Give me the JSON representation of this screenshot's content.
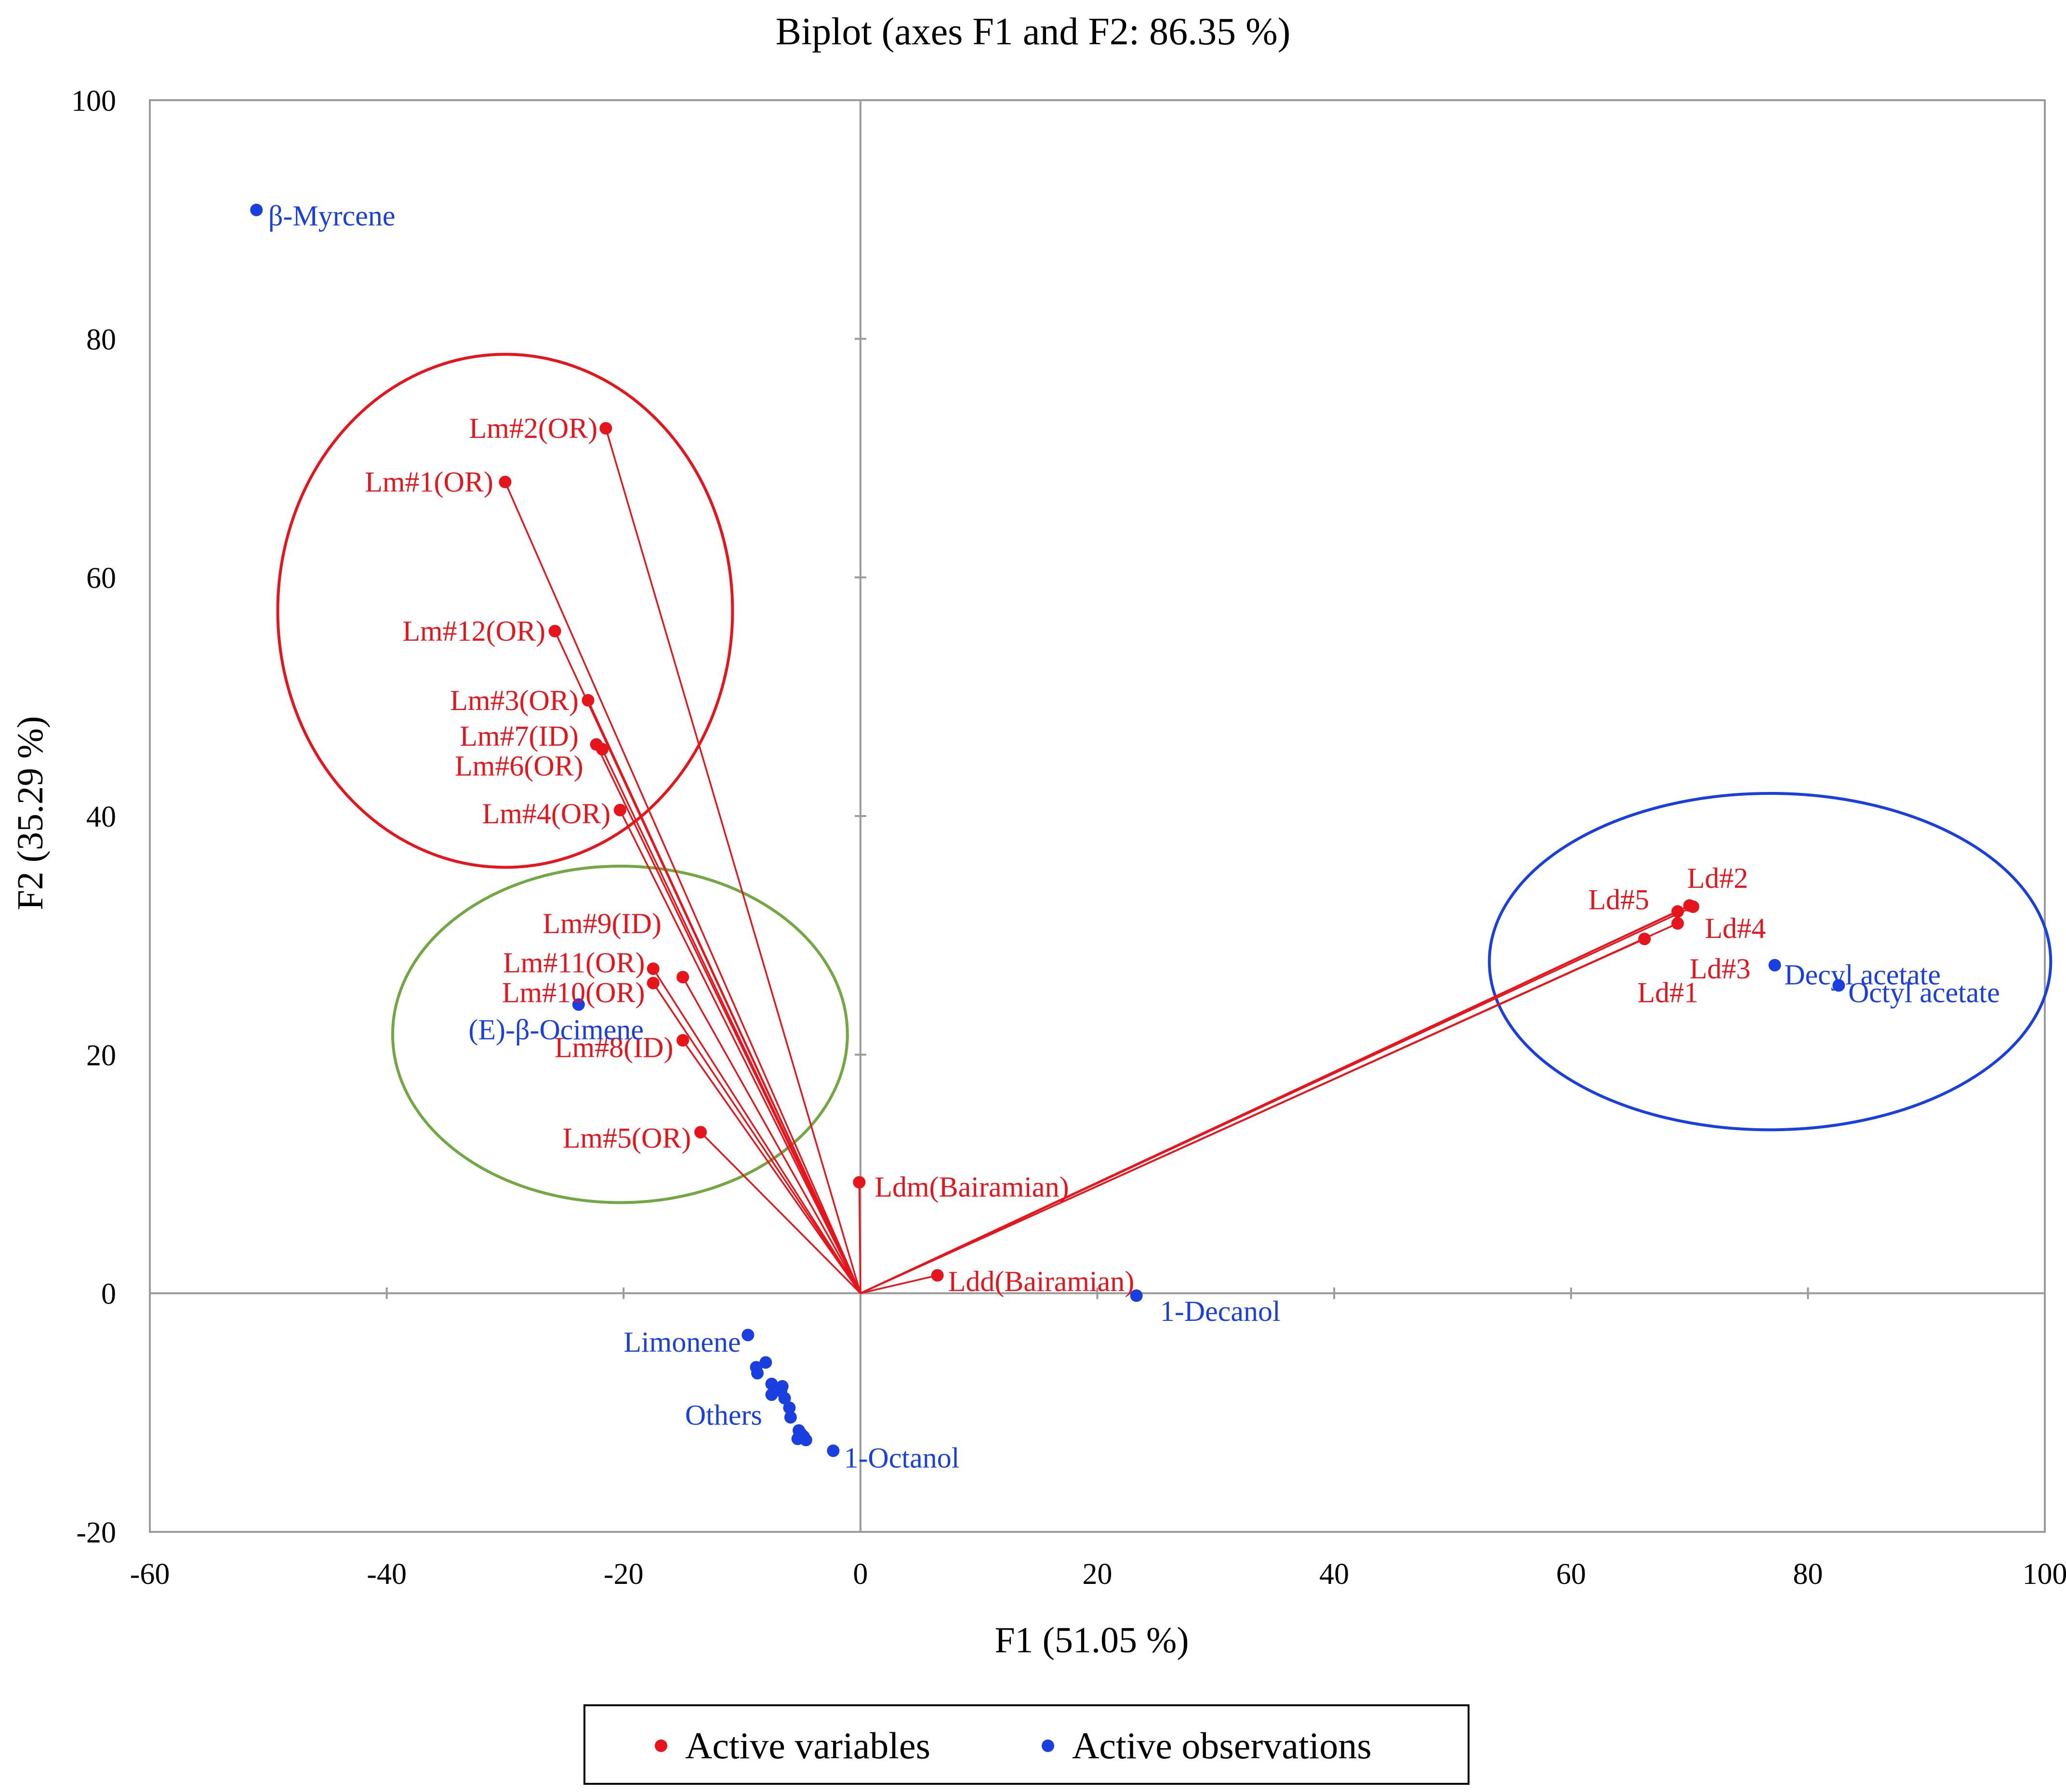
{
  "chart_data": {
    "type": "scatter",
    "title": "Biplot (axes F1 and F2: 86.35 %)",
    "xlabel": "F1 (51.05 %)",
    "ylabel": "F2 (35.29 %)",
    "xlim": [
      -60,
      100
    ],
    "ylim": [
      -20,
      100
    ],
    "xticks": [
      -60,
      -40,
      -20,
      0,
      20,
      40,
      60,
      80,
      100
    ],
    "yticks": [
      -20,
      0,
      20,
      40,
      60,
      80,
      100
    ],
    "grid": false,
    "legend": {
      "placement": "bottom-center",
      "items": [
        {
          "label": "Active variables",
          "color": "#e8141c"
        },
        {
          "label": "Active observations",
          "color": "#1a3fe0"
        }
      ]
    },
    "series": [
      {
        "name": "Active variables",
        "color": "#e8141c",
        "vectors_from_origin": true,
        "points": [
          {
            "label": "Lm#2(OR)",
            "x": -21.5,
            "y": 72.5,
            "anchor": "end",
            "dx": -0.7,
            "dy": 0
          },
          {
            "label": "Lm#1(OR)",
            "x": -30.0,
            "y": 68.0,
            "anchor": "end",
            "dx": -1.0,
            "dy": 0
          },
          {
            "label": "Lm#12(OR)",
            "x": -25.8,
            "y": 55.5,
            "anchor": "end",
            "dx": -0.8,
            "dy": 0
          },
          {
            "label": "Lm#3(OR)",
            "x": -23.0,
            "y": 49.7,
            "anchor": "end",
            "dx": -0.8,
            "dy": 0
          },
          {
            "label": "Lm#7(ID)",
            "x": -22.3,
            "y": 46.0,
            "anchor": "end",
            "dx": -1.5,
            "dy": 0.7
          },
          {
            "label": "Lm#6(OR)",
            "x": -21.8,
            "y": 45.6,
            "anchor": "end",
            "dx": -1.6,
            "dy": -1.4
          },
          {
            "label": "Lm#4(OR)",
            "x": -20.3,
            "y": 40.5,
            "anchor": "end",
            "dx": -0.8,
            "dy": -0.3
          },
          {
            "label": "Lm#9(ID)",
            "x": -15.0,
            "y": 26.5,
            "anchor": "end",
            "dx": -1.8,
            "dy": 4.5
          },
          {
            "label": "Lm#11(OR)",
            "x": -17.5,
            "y": 27.2,
            "anchor": "end",
            "dx": -0.7,
            "dy": 0.5
          },
          {
            "label": "Lm#10(OR)",
            "x": -17.5,
            "y": 26.0,
            "anchor": "end",
            "dx": -0.7,
            "dy": -0.8
          },
          {
            "label": "Lm#8(ID)",
            "x": -15.0,
            "y": 21.2,
            "anchor": "end",
            "dx": -0.8,
            "dy": -0.6
          },
          {
            "label": "Lm#5(OR)",
            "x": -13.5,
            "y": 13.5,
            "anchor": "end",
            "dx": -0.8,
            "dy": -0.5
          },
          {
            "label": "Ldm(Bairamian)",
            "x": -0.1,
            "y": 9.3,
            "anchor": "start",
            "dx": 1.3,
            "dy": -0.4
          },
          {
            "label": "Ldd(Bairamian)",
            "x": 6.5,
            "y": 1.5,
            "anchor": "start",
            "dx": 0.9,
            "dy": -0.5
          },
          {
            "label": "Ld#5",
            "x": 69.0,
            "y": 32.0,
            "anchor": "end",
            "dx": -2.4,
            "dy": 1.0
          },
          {
            "label": "Ld#2",
            "x": 70.0,
            "y": 32.5,
            "anchor": "start",
            "dx": -0.2,
            "dy": 2.3
          },
          {
            "label": "Ld#4",
            "x": 70.3,
            "y": 32.4,
            "anchor": "start",
            "dx": 1.0,
            "dy": -1.8
          },
          {
            "label": "Ld#3",
            "x": 69.0,
            "y": 31.0,
            "anchor": "start",
            "dx": 1.0,
            "dy": -3.8
          },
          {
            "label": "Ld#1",
            "x": 66.2,
            "y": 29.7,
            "anchor": "start",
            "dx": -0.6,
            "dy": -4.5
          }
        ]
      },
      {
        "name": "Active observations",
        "color": "#1a3fe0",
        "vectors_from_origin": false,
        "points": [
          {
            "label": "β-Myrcene",
            "x": -51.0,
            "y": 90.8,
            "anchor": "start",
            "dx": 1.0,
            "dy": -0.5
          },
          {
            "label": "(E)-β-Ocimene",
            "x": -23.8,
            "y": 24.2,
            "anchor": "end",
            "dx": 5.5,
            "dy": -2.1
          },
          {
            "label": "Limonene",
            "x": -9.5,
            "y": -3.5,
            "anchor": "end",
            "dx": -0.6,
            "dy": -0.6
          },
          {
            "label": "Others",
            "x": -7.5,
            "y": -8.5,
            "anchor": "end",
            "dx": -0.8,
            "dy": -1.7
          },
          {
            "label": "1-Octanol",
            "x": -2.3,
            "y": -13.2,
            "anchor": "start",
            "dx": 0.9,
            "dy": -0.6
          },
          {
            "label": "1-Decanol",
            "x": 23.3,
            "y": -0.2,
            "anchor": "start",
            "dx": 2.0,
            "dy": -1.3
          },
          {
            "label": "Decyl acetate",
            "x": 77.2,
            "y": 27.5,
            "anchor": "start",
            "dx": 0.8,
            "dy": -0.8
          },
          {
            "label": "Octyl acetate",
            "x": 82.6,
            "y": 25.8,
            "anchor": "start",
            "dx": 0.8,
            "dy": -0.6
          },
          {
            "label": "",
            "x": -8.8,
            "y": -6.2
          },
          {
            "label": "",
            "x": -8.7,
            "y": -6.7
          },
          {
            "label": "",
            "x": -8.0,
            "y": -5.8
          },
          {
            "label": "",
            "x": -7.5,
            "y": -7.6
          },
          {
            "label": "",
            "x": -6.6,
            "y": -7.8
          },
          {
            "label": "",
            "x": -6.7,
            "y": -8.2
          },
          {
            "label": "",
            "x": -6.4,
            "y": -8.8
          },
          {
            "label": "",
            "x": -6.0,
            "y": -9.6
          },
          {
            "label": "",
            "x": -5.9,
            "y": -10.4
          },
          {
            "label": "",
            "x": -5.2,
            "y": -11.5
          },
          {
            "label": "",
            "x": -5.0,
            "y": -11.8
          },
          {
            "label": "",
            "x": -4.8,
            "y": -12.0
          },
          {
            "label": "",
            "x": -5.3,
            "y": -12.2
          },
          {
            "label": "",
            "x": -4.6,
            "y": -12.3
          }
        ]
      }
    ],
    "ellipses": [
      {
        "name": "red-cluster-ellipse",
        "color": "#e8141c",
        "cx": -30.0,
        "cy": 57.2,
        "rx": 19.2,
        "ry": 21.5
      },
      {
        "name": "green-cluster-ellipse",
        "color": "#72a843",
        "cx": -20.3,
        "cy": 21.7,
        "rx": 19.2,
        "ry": 14.1
      },
      {
        "name": "blue-cluster-ellipse",
        "color": "#1a3fe0",
        "cx": 76.8,
        "cy": 27.8,
        "rx": 23.7,
        "ry": 14.1
      }
    ]
  }
}
